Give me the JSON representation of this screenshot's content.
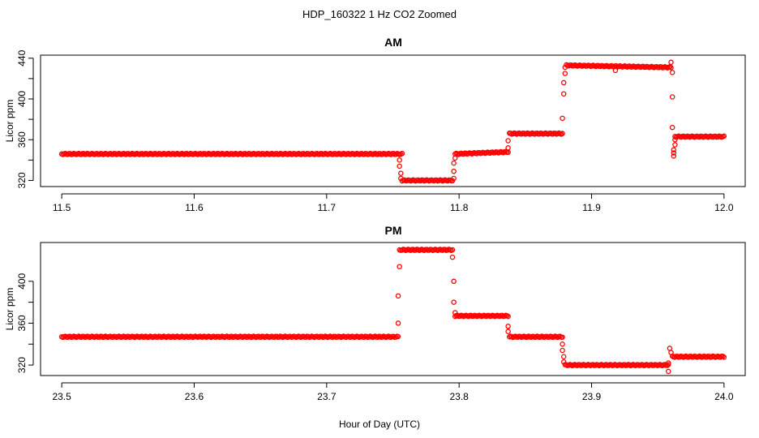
{
  "figure": {
    "title": "HDP_160322  1 Hz CO2 Zoomed",
    "xlabel": "Hour of Day (UTC)"
  },
  "colors": {
    "points": "#ff0000",
    "axes": "#000000",
    "background": "#ffffff"
  },
  "chart_data": [
    {
      "type": "scatter",
      "title": "AM",
      "xlabel": "",
      "ylabel": "Licor ppm",
      "xlim": [
        11.484,
        12.016
      ],
      "ylim": [
        314,
        443
      ],
      "xticks": [
        11.5,
        11.6,
        11.7,
        11.8,
        11.9,
        12.0
      ],
      "xtick_labels": [
        "11.5",
        "11.6",
        "11.7",
        "11.8",
        "11.9",
        "12.0"
      ],
      "yticks": [
        320,
        360,
        400,
        440
      ],
      "ytick_labels": [
        "320",
        "360",
        "400",
        "440"
      ],
      "grid": false,
      "marker": "open-circle",
      "segments": [
        {
          "x": [
            11.5,
            11.755
          ],
          "y": [
            346,
            346
          ]
        },
        {
          "x": [
            11.755,
            11.757
          ],
          "y": [
            346,
            346
          ]
        },
        {
          "x": [
            11.757,
            11.795
          ],
          "y": [
            320,
            320
          ]
        },
        {
          "x": [
            11.797,
            11.837
          ],
          "y": [
            346,
            348
          ]
        },
        {
          "x": [
            11.838,
            11.878
          ],
          "y": [
            366,
            366
          ]
        },
        {
          "x": [
            11.881,
            11.96
          ],
          "y": [
            433,
            431
          ]
        },
        {
          "x": [
            11.963,
            12.0
          ],
          "y": [
            363,
            363
          ]
        }
      ],
      "points": [
        {
          "x": 11.755,
          "y": 340
        },
        {
          "x": 11.755,
          "y": 334
        },
        {
          "x": 11.756,
          "y": 327
        },
        {
          "x": 11.756,
          "y": 322
        },
        {
          "x": 11.796,
          "y": 322
        },
        {
          "x": 11.796,
          "y": 329
        },
        {
          "x": 11.796,
          "y": 337
        },
        {
          "x": 11.797,
          "y": 342
        },
        {
          "x": 11.837,
          "y": 352
        },
        {
          "x": 11.837,
          "y": 359
        },
        {
          "x": 11.878,
          "y": 381
        },
        {
          "x": 11.879,
          "y": 405
        },
        {
          "x": 11.879,
          "y": 416
        },
        {
          "x": 11.88,
          "y": 425
        },
        {
          "x": 11.88,
          "y": 431
        },
        {
          "x": 11.918,
          "y": 428
        },
        {
          "x": 11.96,
          "y": 436
        },
        {
          "x": 11.961,
          "y": 426
        },
        {
          "x": 11.961,
          "y": 402
        },
        {
          "x": 11.961,
          "y": 372
        },
        {
          "x": 11.962,
          "y": 344
        },
        {
          "x": 11.962,
          "y": 347
        },
        {
          "x": 11.962,
          "y": 350
        },
        {
          "x": 11.963,
          "y": 355
        },
        {
          "x": 11.963,
          "y": 360
        }
      ]
    },
    {
      "type": "scatter",
      "title": "PM",
      "xlabel": "",
      "ylabel": "Licor ppm",
      "xlim": [
        23.484,
        24.016
      ],
      "ylim": [
        310,
        437
      ],
      "xticks": [
        23.5,
        23.6,
        23.7,
        23.8,
        23.9,
        24.0
      ],
      "xtick_labels": [
        "23.5",
        "23.6",
        "23.7",
        "23.8",
        "23.9",
        "24.0"
      ],
      "yticks": [
        320,
        360,
        400
      ],
      "ytick_labels": [
        "320",
        "360",
        "400"
      ],
      "grid": false,
      "marker": "open-circle",
      "segments": [
        {
          "x": [
            23.5,
            23.754
          ],
          "y": [
            347,
            347
          ]
        },
        {
          "x": [
            23.756,
            23.795
          ],
          "y": [
            430,
            430
          ]
        },
        {
          "x": [
            23.797,
            23.837
          ],
          "y": [
            367,
            367
          ]
        },
        {
          "x": [
            23.838,
            23.878
          ],
          "y": [
            347,
            347
          ]
        },
        {
          "x": [
            23.88,
            23.958
          ],
          "y": [
            320,
            320
          ]
        },
        {
          "x": [
            23.961,
            24.0
          ],
          "y": [
            328,
            328
          ]
        }
      ],
      "points": [
        {
          "x": 23.754,
          "y": 360
        },
        {
          "x": 23.754,
          "y": 386
        },
        {
          "x": 23.755,
          "y": 414
        },
        {
          "x": 23.755,
          "y": 430
        },
        {
          "x": 23.795,
          "y": 423
        },
        {
          "x": 23.796,
          "y": 400
        },
        {
          "x": 23.796,
          "y": 380
        },
        {
          "x": 23.797,
          "y": 370
        },
        {
          "x": 23.837,
          "y": 357
        },
        {
          "x": 23.837,
          "y": 352
        },
        {
          "x": 23.878,
          "y": 340
        },
        {
          "x": 23.878,
          "y": 334
        },
        {
          "x": 23.879,
          "y": 328
        },
        {
          "x": 23.879,
          "y": 323
        },
        {
          "x": 23.958,
          "y": 322
        },
        {
          "x": 23.958,
          "y": 314
        },
        {
          "x": 23.959,
          "y": 336
        },
        {
          "x": 23.96,
          "y": 332
        }
      ]
    }
  ]
}
